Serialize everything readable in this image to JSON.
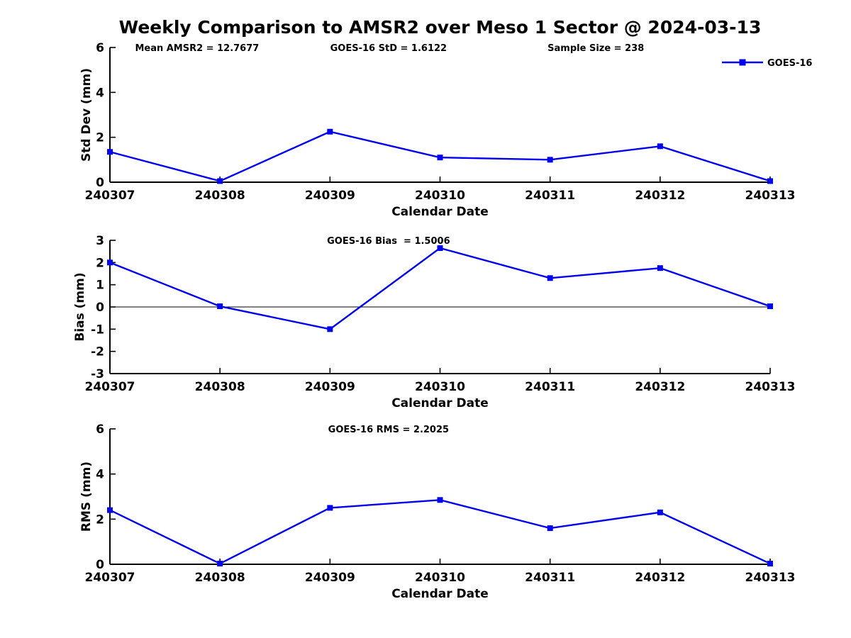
{
  "title": "Weekly Comparison to AMSR2 over Meso 1 Sector @ 2024-03-13",
  "colors": {
    "line": "#0000EE",
    "axis": "#000000",
    "text": "#000000",
    "background": "#FFFFFF"
  },
  "legend": {
    "entries": [
      {
        "label": "GOES-16",
        "color": "#0000EE",
        "marker": "square"
      }
    ],
    "position": "upper-right"
  },
  "chart_data": [
    {
      "type": "line",
      "ylabel": "Std Dev (mm)",
      "xlabel": "Calendar Date",
      "categories": [
        "240307",
        "240308",
        "240309",
        "240310",
        "240311",
        "240312",
        "240313"
      ],
      "series": [
        {
          "name": "GOES-16",
          "values": [
            1.35,
            0.05,
            2.25,
            1.1,
            1.0,
            1.6,
            0.05
          ]
        }
      ],
      "ylim": [
        0,
        6
      ],
      "yticks": [
        0,
        2,
        4,
        6
      ],
      "grid": false,
      "zero_line": false,
      "show_legend": true,
      "annotations": [
        {
          "text": "Mean AMSR2 = 12.7677",
          "cx": 0.132
        },
        {
          "text": "GOES-16 StD = 1.6122",
          "cx": 0.422
        },
        {
          "text": "Sample Size = 238",
          "cx": 0.736
        }
      ]
    },
    {
      "type": "line",
      "ylabel": "Bias (mm)",
      "xlabel": "Calendar Date",
      "categories": [
        "240307",
        "240308",
        "240309",
        "240310",
        "240311",
        "240312",
        "240313"
      ],
      "series": [
        {
          "name": "GOES-16",
          "values": [
            2.0,
            0.03,
            -1.0,
            2.65,
            1.3,
            1.75,
            0.03
          ]
        }
      ],
      "ylim": [
        -3,
        3
      ],
      "yticks": [
        3,
        2,
        1,
        0,
        -1,
        -2,
        -3
      ],
      "grid": false,
      "zero_line": true,
      "show_legend": false,
      "annotations": [
        {
          "text": "GOES-16 Bias  = 1.5006",
          "cx": 0.422
        }
      ]
    },
    {
      "type": "line",
      "ylabel": "RMS (mm)",
      "xlabel": "Calendar Date",
      "categories": [
        "240307",
        "240308",
        "240309",
        "240310",
        "240311",
        "240312",
        "240313"
      ],
      "series": [
        {
          "name": "GOES-16",
          "values": [
            2.4,
            0.03,
            2.5,
            2.85,
            1.6,
            2.3,
            0.03
          ]
        }
      ],
      "ylim": [
        0,
        6
      ],
      "yticks": [
        0,
        2,
        4,
        6
      ],
      "grid": false,
      "zero_line": false,
      "show_legend": false,
      "annotations": [
        {
          "text": "GOES-16 RMS = 2.2025",
          "cx": 0.422
        }
      ]
    }
  ]
}
